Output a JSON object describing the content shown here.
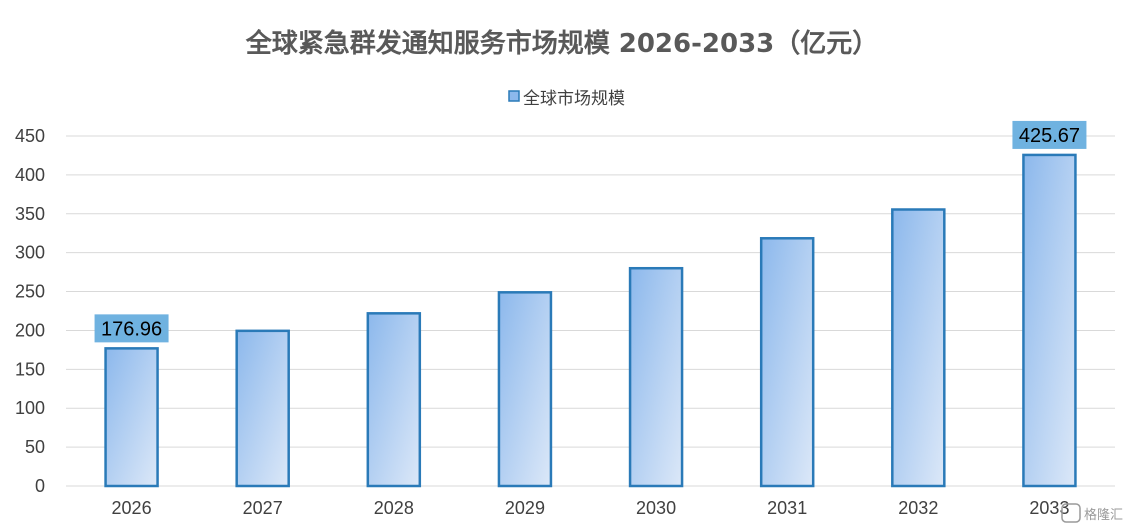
{
  "chart_data": {
    "type": "bar",
    "title": "全球紧急群发通知服务市场规模 2026-2033（亿元）",
    "categories": [
      "2026",
      "2027",
      "2028",
      "2029",
      "2030",
      "2031",
      "2032",
      "2033"
    ],
    "series": [
      {
        "name": "全球市场规模",
        "values": [
          176.96,
          199.5,
          222.0,
          249.0,
          280.0,
          318.5,
          355.5,
          425.67
        ]
      }
    ],
    "data_labels": [
      {
        "index": 0,
        "text": "176.96"
      },
      {
        "index": 7,
        "text": "425.67"
      }
    ],
    "yticks": [
      "0",
      "50",
      "100",
      "150",
      "200",
      "250",
      "300",
      "350",
      "400",
      "450"
    ],
    "ylim": [
      0,
      450
    ],
    "xlabel": "",
    "ylabel": "",
    "grid": true,
    "legend_position": "top-center",
    "colors": {
      "bar_fill_top": "#8cb8ec",
      "bar_fill_bottom": "#dce8f8",
      "bar_stroke": "#2a7ab8",
      "label_box": "#6fb2e0",
      "gridline": "#d9d9d9"
    }
  },
  "watermark": "格隆汇"
}
